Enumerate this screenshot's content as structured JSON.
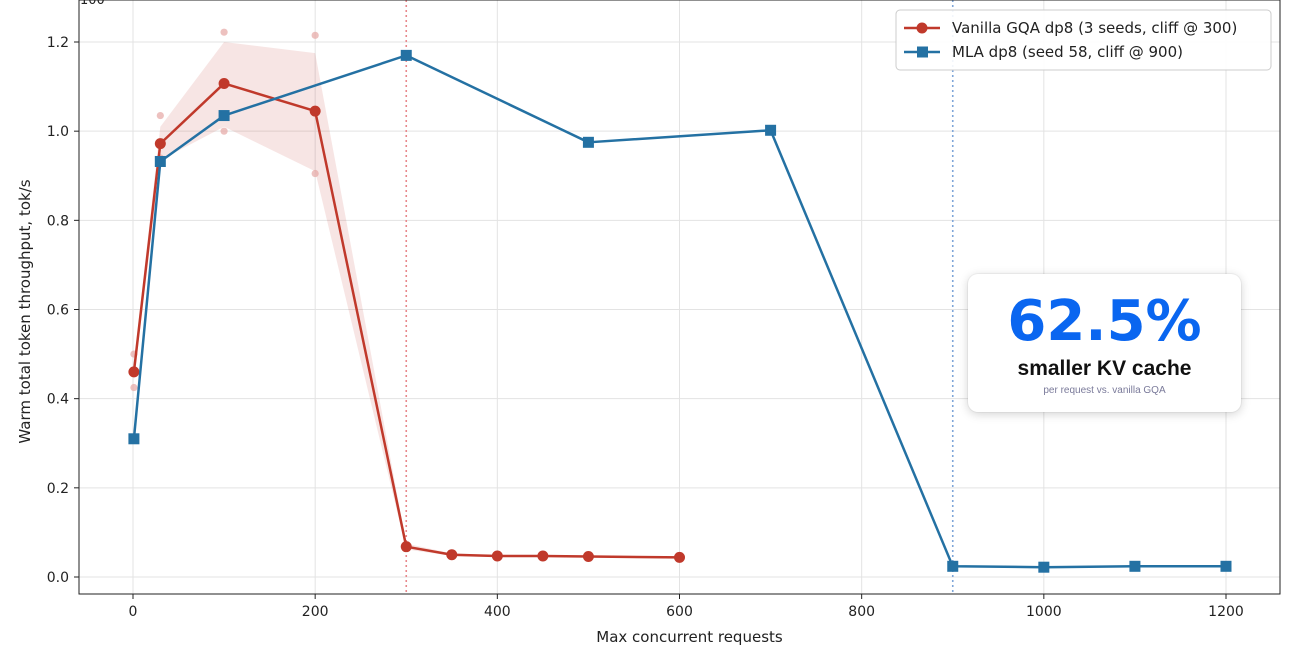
{
  "chart_data": {
    "type": "line",
    "title": "",
    "xlabel": "Max concurrent requests",
    "ylabel": "Warm total token throughput, tok/s",
    "xlim": [
      -60,
      1260
    ],
    "ylim": [
      -0.04,
      1.285
    ],
    "x_ticks": [
      0,
      200,
      400,
      600,
      800,
      1000,
      1200
    ],
    "y_ticks": [
      0.0,
      0.2,
      0.4,
      0.6,
      0.8,
      1.0,
      1.2
    ],
    "grid": true,
    "legend_position": "top-right",
    "series": [
      {
        "name": "Vanilla GQA dp8 (3 seeds, cliff @ 300)",
        "color": "#c0392b",
        "marker": "circle",
        "x": [
          1,
          30,
          100,
          200,
          300,
          350,
          400,
          450,
          500,
          600
        ],
        "y": [
          0.46,
          0.972,
          1.107,
          1.045,
          0.068,
          0.05,
          0.047,
          0.047,
          0.046,
          0.044
        ],
        "band_lower": [
          0.44,
          0.935,
          1.01,
          0.91,
          0.062,
          0.047,
          0.045,
          0.045,
          0.044,
          0.042
        ],
        "band_upper": [
          0.48,
          1.01,
          1.2,
          1.175,
          0.075,
          0.053,
          0.049,
          0.049,
          0.048,
          0.046
        ],
        "seed_points": [
          {
            "x": 1,
            "y": 0.425
          },
          {
            "x": 1,
            "y": 0.5
          },
          {
            "x": 30,
            "y": 0.94
          },
          {
            "x": 30,
            "y": 1.035
          },
          {
            "x": 100,
            "y": 1.0
          },
          {
            "x": 100,
            "y": 1.222
          },
          {
            "x": 200,
            "y": 0.905
          },
          {
            "x": 200,
            "y": 1.215
          }
        ]
      },
      {
        "name": "MLA dp8 (seed 58, cliff @ 900)",
        "color": "#2471a3",
        "marker": "square",
        "x": [
          1,
          30,
          100,
          300,
          500,
          700,
          900,
          1000,
          1100,
          1200
        ],
        "y": [
          0.31,
          0.932,
          1.035,
          1.17,
          0.975,
          1.002,
          0.024,
          0.022,
          0.024,
          0.024
        ]
      }
    ],
    "vlines": [
      {
        "x": 300,
        "color": "#e8898c"
      },
      {
        "x": 900,
        "color": "#7fa6d8"
      }
    ],
    "clipped_top_label": "100"
  },
  "callout": {
    "value": "62.5%",
    "label": "smaller KV cache",
    "note": "per request vs. vanilla GQA",
    "value_color": "#0a66f0"
  }
}
